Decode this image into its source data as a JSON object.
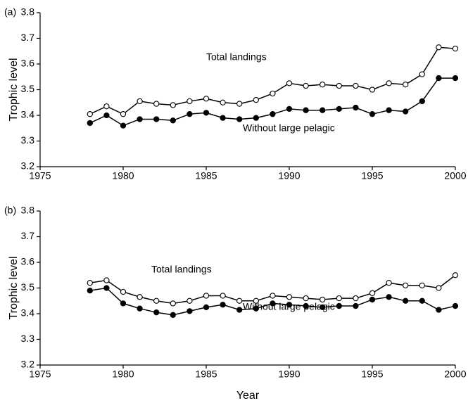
{
  "chart_data": [
    {
      "type": "line",
      "panel_label": "(a)",
      "ylabel": "Trophic level",
      "x": [
        1978,
        1979,
        1980,
        1981,
        1982,
        1983,
        1984,
        1985,
        1986,
        1987,
        1988,
        1989,
        1990,
        1991,
        1992,
        1993,
        1994,
        1995,
        1996,
        1997,
        1998,
        1999,
        2000
      ],
      "series": [
        {
          "name": "Total landings",
          "color": "#000000",
          "marker": "open",
          "values": [
            3.405,
            3.435,
            3.405,
            3.455,
            3.445,
            3.44,
            3.455,
            3.465,
            3.45,
            3.445,
            3.46,
            3.485,
            3.525,
            3.515,
            3.52,
            3.515,
            3.515,
            3.5,
            3.525,
            3.52,
            3.56,
            3.665,
            3.66
          ]
        },
        {
          "name": "Without large pelagic",
          "color": "#000000",
          "marker": "filled",
          "values": [
            3.37,
            3.4,
            3.36,
            3.385,
            3.385,
            3.38,
            3.405,
            3.41,
            3.39,
            3.385,
            3.39,
            3.405,
            3.425,
            3.42,
            3.42,
            3.425,
            3.43,
            3.405,
            3.42,
            3.415,
            3.455,
            3.545,
            3.545
          ]
        }
      ],
      "xlim": [
        1975,
        2000
      ],
      "xticks": [
        1975,
        1980,
        1985,
        1990,
        1995,
        2000
      ],
      "ylim": [
        3.2,
        3.8
      ],
      "yticks": [
        3.2,
        3.3,
        3.4,
        3.5,
        3.6,
        3.7,
        3.8
      ]
    },
    {
      "type": "line",
      "panel_label": "(b)",
      "ylabel": "Trophic level",
      "xlabel": "Year",
      "x": [
        1978,
        1979,
        1980,
        1981,
        1982,
        1983,
        1984,
        1985,
        1986,
        1987,
        1988,
        1989,
        1990,
        1991,
        1992,
        1993,
        1994,
        1995,
        1996,
        1997,
        1998,
        1999,
        2000
      ],
      "series": [
        {
          "name": "Total landings",
          "color": "#000000",
          "marker": "open",
          "values": [
            3.52,
            3.53,
            3.485,
            3.465,
            3.45,
            3.44,
            3.45,
            3.47,
            3.47,
            3.45,
            3.45,
            3.47,
            3.465,
            3.46,
            3.455,
            3.46,
            3.46,
            3.48,
            3.52,
            3.51,
            3.51,
            3.5,
            3.55
          ]
        },
        {
          "name": "Without large pelagic",
          "color": "#000000",
          "marker": "filled",
          "values": [
            3.49,
            3.5,
            3.44,
            3.42,
            3.405,
            3.395,
            3.41,
            3.425,
            3.435,
            3.415,
            3.42,
            3.44,
            3.435,
            3.43,
            3.425,
            3.43,
            3.43,
            3.455,
            3.465,
            3.45,
            3.45,
            3.415,
            3.43
          ]
        }
      ],
      "xlim": [
        1975,
        2000
      ],
      "xticks": [
        1975,
        1980,
        1985,
        1990,
        1995,
        2000
      ],
      "ylim": [
        3.2,
        3.8
      ],
      "yticks": [
        3.2,
        3.3,
        3.4,
        3.5,
        3.6,
        3.7,
        3.8
      ]
    }
  ]
}
